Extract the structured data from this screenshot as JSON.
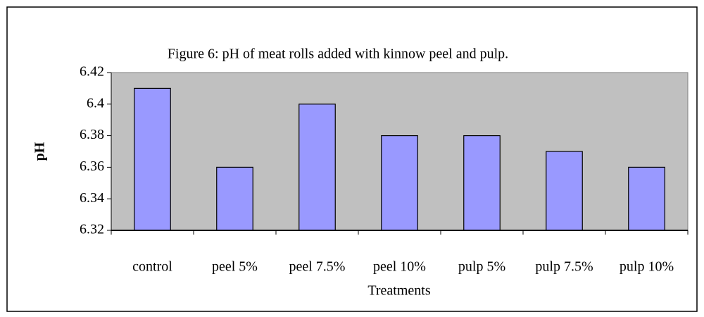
{
  "chart_data": {
    "type": "bar",
    "title": "Figure 6: pH of meat rolls added with kinnow peel and pulp.",
    "categories": [
      "control",
      "peel 5%",
      "peel 7.5%",
      "peel 10%",
      "pulp 5%",
      "pulp 7.5%",
      "pulp 10%"
    ],
    "values": [
      6.41,
      6.36,
      6.4,
      6.38,
      6.38,
      6.37,
      6.36
    ],
    "color": "#9999ff",
    "xlabel": "Treatments",
    "ylabel": "pH",
    "ylim": [
      6.32,
      6.42
    ],
    "yticks": [
      6.32,
      6.34,
      6.36,
      6.38,
      6.4,
      6.42
    ],
    "grid": false,
    "plot_background": "#c0c0c0"
  }
}
